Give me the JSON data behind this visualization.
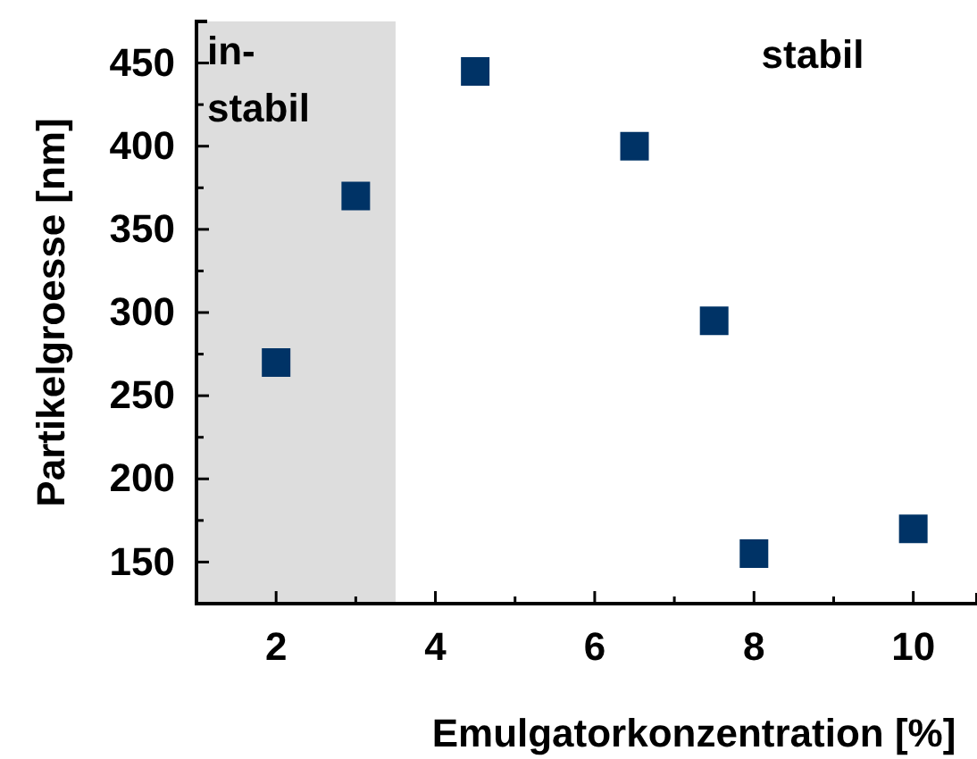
{
  "chart_data": {
    "type": "scatter",
    "xlabel": "Emulgatorkonzentration [%]",
    "ylabel": "Partikelgroesse [nm]",
    "x": [
      2,
      3,
      4.5,
      6.5,
      7.5,
      8,
      10
    ],
    "series": [
      {
        "color": "#003366",
        "values": [
          270,
          370,
          445,
          400,
          295,
          155,
          170
        ]
      }
    ],
    "marker": "square",
    "xlim": [
      1,
      10.8
    ],
    "ylim": [
      125,
      475
    ],
    "xticks": [
      2,
      {
        "value": 3,
        "label": null
      },
      4,
      {
        "value": 5,
        "label": null
      },
      6,
      {
        "value": 7,
        "label": null
      },
      8,
      {
        "value": 9,
        "label": null
      },
      10
    ],
    "yticks": [
      {
        "value": 125,
        "label": null
      },
      150,
      {
        "value": 175,
        "label": null
      },
      200,
      {
        "value": 225,
        "label": null
      },
      250,
      {
        "value": 275,
        "label": null
      },
      300,
      {
        "value": 325,
        "label": null
      },
      350,
      {
        "value": 375,
        "label": null
      },
      400,
      {
        "value": 425,
        "label": null
      },
      450
    ],
    "bands": [
      {
        "axis": "x",
        "from": 1,
        "to": 3.5,
        "label": "in-\nstabil",
        "color": "#dddddd"
      }
    ],
    "annotations": [
      "stabil"
    ],
    "grid": false
  }
}
